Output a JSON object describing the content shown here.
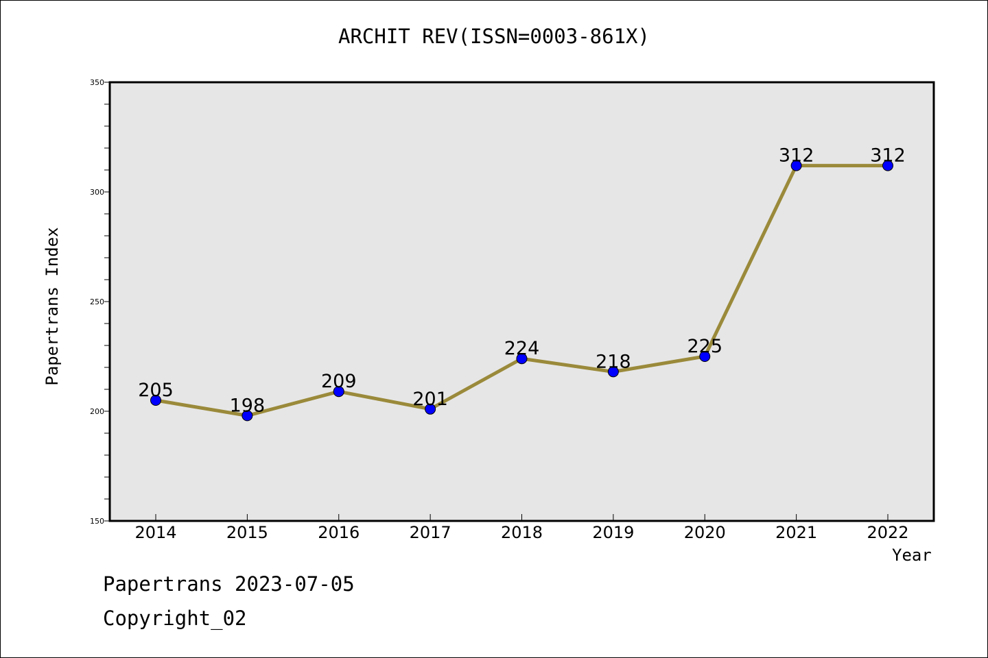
{
  "footer": {
    "line1": "Papertrans 2023-07-05",
    "line2": "Copyright_02"
  },
  "colors": {
    "plot_background": "#e6e6e6",
    "line": "#9a8a3a",
    "marker": "#0000ff"
  },
  "chart_data": {
    "type": "line",
    "title": "ARCHIT REV(ISSN=0003-861X)",
    "xlabel": "Year",
    "ylabel": "Papertrans Index",
    "categories": [
      "2014",
      "2015",
      "2016",
      "2017",
      "2018",
      "2019",
      "2020",
      "2021",
      "2022"
    ],
    "values": [
      205,
      198,
      209,
      201,
      224,
      218,
      225,
      312,
      312
    ],
    "data_labels": [
      "205",
      "198",
      "209",
      "201",
      "224",
      "218",
      "225",
      "312",
      "312"
    ],
    "ylim": [
      150,
      350
    ],
    "yticks": [
      150,
      200,
      250,
      300,
      350
    ],
    "yminor_step": 10,
    "grid": false,
    "legend": "none"
  }
}
